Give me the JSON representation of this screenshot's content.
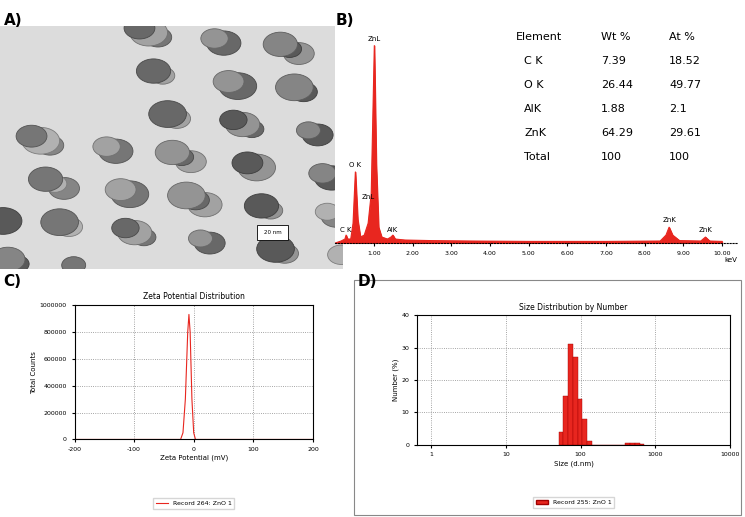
{
  "chart_data": [
    {
      "type": "image",
      "panel_label": "A)",
      "scale_bar_label": "20 nm"
    },
    {
      "type": "line",
      "panel_label": "B)",
      "x": [
        0.0,
        0.15,
        0.25,
        0.28,
        0.32,
        0.4,
        0.46,
        0.52,
        0.58,
        0.65,
        0.75,
        0.85,
        0.93,
        1.01,
        1.06,
        1.12,
        1.2,
        1.35,
        1.44,
        1.49,
        1.55,
        1.8,
        2.5,
        3.5,
        5.0,
        7.0,
        8.4,
        8.55,
        8.63,
        8.72,
        8.9,
        9.45,
        9.57,
        9.68,
        10.0
      ],
      "values": [
        0,
        1,
        2,
        4,
        2,
        2,
        10,
        36,
        12,
        3,
        4,
        10,
        25,
        100,
        40,
        8,
        3,
        2,
        3,
        4,
        2,
        1.5,
        1.2,
        1,
        0.8,
        0.8,
        1,
        4,
        8,
        4,
        1.2,
        1,
        3,
        1,
        0.8
      ],
      "color": "#e8261f",
      "xlim": [
        0,
        10.4
      ],
      "ylim": [
        0,
        110
      ],
      "xticks": [
        {
          "value": 1,
          "label": "1.00"
        },
        {
          "value": 2,
          "label": "2.00"
        },
        {
          "value": 3,
          "label": "3.00"
        },
        {
          "value": 4,
          "label": "4.00"
        },
        {
          "value": 5,
          "label": "5.00"
        },
        {
          "value": 6,
          "label": "6.00"
        },
        {
          "value": 7,
          "label": "7.00"
        },
        {
          "value": 8,
          "label": "8.00"
        },
        {
          "value": 9,
          "label": "9.00"
        },
        {
          "value": 10,
          "label": "10.00"
        }
      ],
      "x_label": "keV",
      "tick_labels": "x",
      "annotations": [
        {
          "text": "C K",
          "x": 0.28,
          "y": 5
        },
        {
          "text": "O K",
          "x": 0.52,
          "y": 38
        },
        {
          "text": "ZnL",
          "x": 1.01,
          "y": 102
        },
        {
          "text": "ZnL",
          "x": 0.85,
          "y": 22
        },
        {
          "text": "AlK",
          "x": 1.49,
          "y": 5
        },
        {
          "text": "ZnK",
          "x": 8.63,
          "y": 10
        },
        {
          "text": "ZnK",
          "x": 9.57,
          "y": 5
        }
      ],
      "table": {
        "header": [
          "Element",
          "Wt %",
          "At %"
        ],
        "rows": [
          [
            "C K",
            7.39,
            18.52
          ],
          [
            "O K",
            26.44,
            49.77
          ],
          [
            "AlK",
            1.88,
            2.1
          ],
          [
            "ZnK",
            64.29,
            29.61
          ],
          [
            "Total",
            100,
            100
          ]
        ]
      }
    },
    {
      "type": "line",
      "panel_label": "C)",
      "title": "Zeta Potential Distribution",
      "x_label": "Zeta Potential (mV)",
      "y_label": "Total Counts",
      "series": [
        {
          "name": "Record 264: ZnO 1",
          "color": "#e8261f",
          "x": [
            -200,
            -30,
            -22,
            -18,
            -14,
            -10,
            -8,
            -6,
            -3,
            0,
            3,
            10,
            200
          ],
          "values": [
            0,
            0,
            0,
            50000,
            300000,
            800000,
            930000,
            800000,
            300000,
            50000,
            0,
            0,
            0
          ]
        }
      ],
      "xlim": [
        -200,
        200
      ],
      "xticks": [
        -200,
        -100,
        0,
        100,
        200
      ],
      "ylim": [
        0,
        1000000
      ],
      "yticks": [
        0,
        200000,
        400000,
        600000,
        800000,
        1000000
      ],
      "grid": true,
      "legend": "lower center"
    },
    {
      "type": "histogram",
      "panel_label": "D)",
      "title": "Size Distribution by Number",
      "x_label": "Size (d.nm)",
      "y_label": "Number (%)",
      "series": [
        {
          "name": "Record 255: ZnO 1",
          "color": "#e8261f",
          "bins": [
            50.75,
            58.77,
            68.06,
            78.82,
            91.28,
            105.7,
            122.4,
            141.8,
            164.2,
            190.1,
            220.2,
            255.0,
            295.3,
            342.0,
            396.1,
            458.7,
            531.2,
            615.1,
            712.4
          ],
          "values": [
            4,
            15,
            31,
            27,
            14,
            8,
            1,
            0,
            0,
            0,
            0,
            0,
            0,
            0,
            0.4,
            0.6,
            0.5,
            0.3
          ]
        }
      ],
      "log": "x",
      "xlim": [
        0.65,
        10000
      ],
      "xticks": [
        1,
        10,
        100,
        1000,
        10000
      ],
      "ylim": [
        0,
        40
      ],
      "yticks": [
        0,
        10,
        20,
        30,
        40
      ],
      "grid": true,
      "legend": "lower center"
    }
  ]
}
